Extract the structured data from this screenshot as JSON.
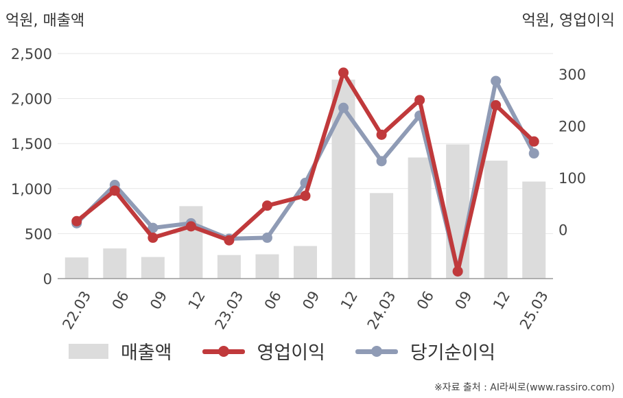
{
  "units": {
    "left": "억원, 매출액",
    "right": "억원, 영업이익"
  },
  "chart_data": {
    "type": "bar",
    "categories": [
      "22.03",
      "06",
      "09",
      "12",
      "23.03",
      "06",
      "09",
      "12",
      "24.03",
      "06",
      "09",
      "12",
      "25.03"
    ],
    "series": [
      {
        "name": "매출액",
        "type": "bar",
        "axis": "left",
        "values": [
          235,
          335,
          240,
          805,
          262,
          270,
          362,
          2210,
          950,
          1345,
          1490,
          1310,
          1078
        ]
      },
      {
        "name": "영업이익",
        "type": "line",
        "axis": "right",
        "values": [
          16,
          75,
          -16,
          6,
          -21,
          46,
          65,
          303,
          183,
          250,
          -81,
          240,
          170
        ]
      },
      {
        "name": "당기순이익",
        "type": "line",
        "axis": "right",
        "values": [
          12,
          86,
          3,
          12,
          -18,
          -16,
          90,
          235,
          132,
          220,
          -81,
          287,
          147
        ]
      }
    ],
    "y_left": {
      "ylim": [
        0,
        2500
      ],
      "ticks": [
        "0",
        "500",
        "1,000",
        "1,500",
        "2,000",
        "2,500"
      ]
    },
    "y_right": {
      "ylim": [
        -95,
        340
      ],
      "ticks": [
        "0",
        "100",
        "200",
        "300"
      ],
      "tick_values": [
        0,
        100,
        200,
        300
      ]
    },
    "grid": true,
    "legend_position": "bottom"
  },
  "colors": {
    "bar": "#dcdcdc",
    "operating": "#c0393b",
    "net": "#8f9bb5",
    "grid": "#e6e6e6",
    "axis": "#999999"
  },
  "source": "※자료 출처 : AI라씨로(www.rassiro.com)"
}
